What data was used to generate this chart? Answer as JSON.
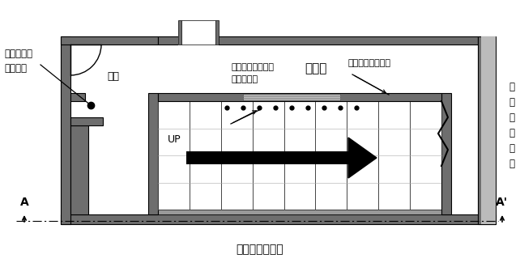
{
  "title": "地下１階平面図",
  "label_corridor": "廊下",
  "label_store": "店　舗",
  "label_left_wall": "常時閉鎖式\nの防火戸",
  "label_right_wall": "耐\n火\n構\n造\nの\n壁",
  "label_shutter_line1": "煙感知器連動防火",
  "label_shutter_line2": "シャッター",
  "label_hamegoros": "はめ殺しの防火戸",
  "label_up": "UP",
  "label_A": "A",
  "label_Aprime": "A'",
  "gray_dark": "#6e6e6e",
  "gray_mid": "#999999",
  "gray_light": "#bbbbbb",
  "black": "#000000",
  "white": "#ffffff"
}
